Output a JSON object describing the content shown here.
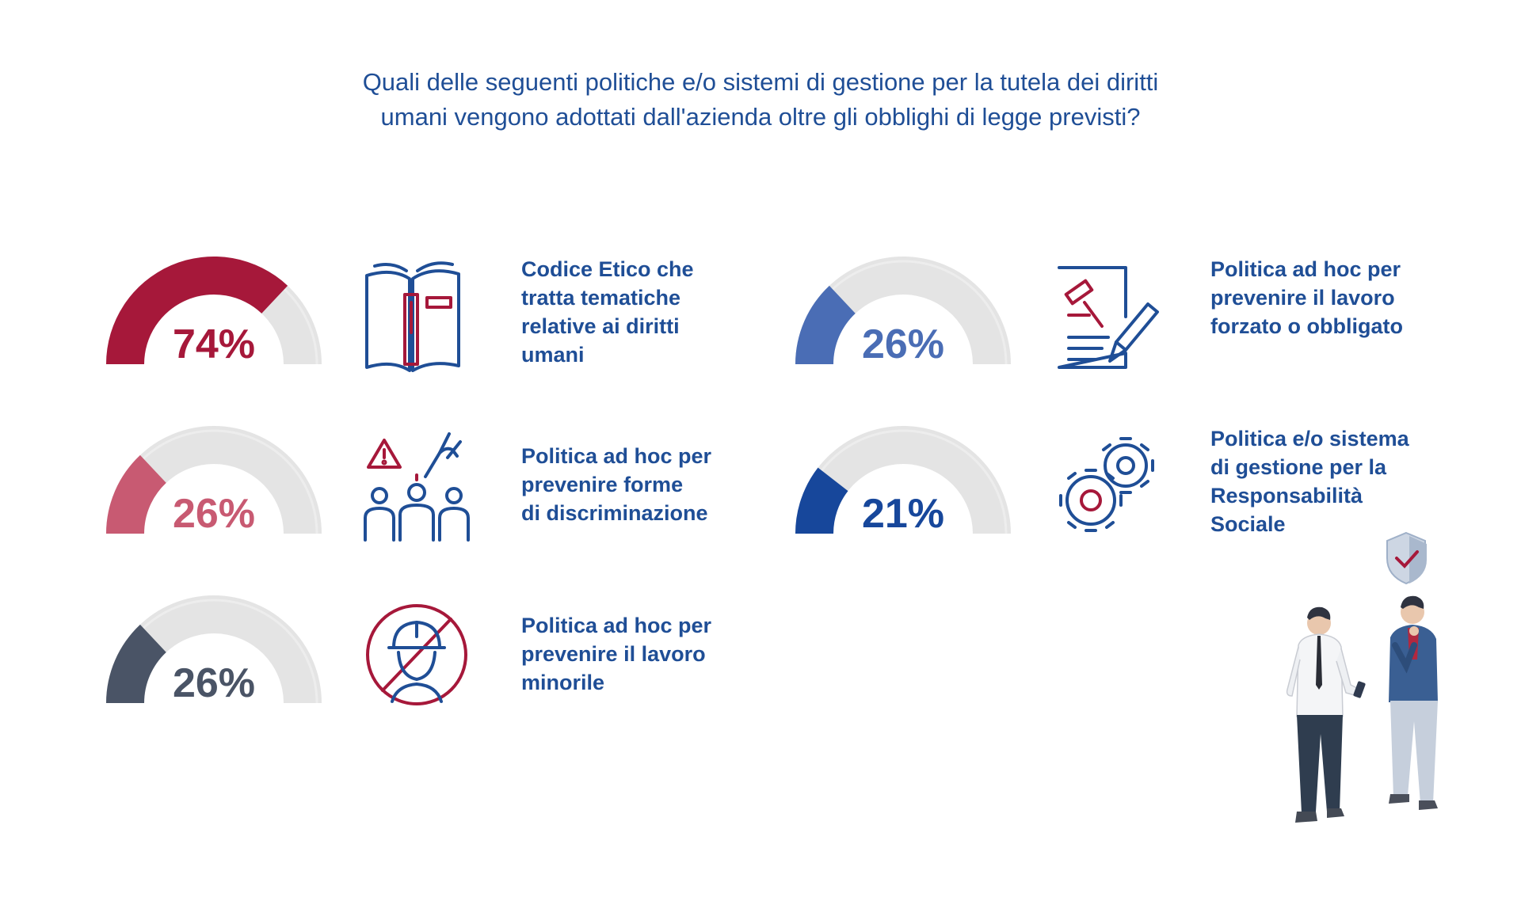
{
  "title": {
    "line1": "Quali delle seguenti politiche e/o sistemi di gestione per la tutela dei diritti",
    "line2": "umani vengono adottati dall'azienda oltre gli obblighi di legge previsti?"
  },
  "chart_data": {
    "type": "gauge",
    "items": [
      {
        "label_lines": [
          "Codice Etico che",
          "tratta tematiche",
          "relative ai diritti",
          "umani"
        ],
        "value": 74,
        "value_label": "74%",
        "color": "#a6183a",
        "icon": "book-icon"
      },
      {
        "label_lines": [
          "Politica ad hoc per",
          "prevenire forme",
          "di discriminazione"
        ],
        "value": 26,
        "value_label": "26%",
        "color": "#c85a72",
        "icon": "discrimination-icon"
      },
      {
        "label_lines": [
          "Politica ad hoc per",
          "prevenire il lavoro",
          "minorile"
        ],
        "value": 26,
        "value_label": "26%",
        "color": "#4a5466",
        "icon": "no-child-labour-icon"
      },
      {
        "label_lines": [
          "Politica ad hoc per",
          "prevenire il lavoro",
          "forzato o obbligato"
        ],
        "value": 26,
        "value_label": "26%",
        "color": "#4a6db5",
        "icon": "legal-document-icon"
      },
      {
        "label_lines": [
          "Politica e/o sistema",
          "di gestione per la",
          "Responsabilità",
          "Sociale"
        ],
        "value": 21,
        "value_label": "21%",
        "color": "#17479b",
        "icon": "gears-icon"
      }
    ],
    "track_color": "#e4e4e4",
    "value_range": [
      0,
      100
    ]
  }
}
